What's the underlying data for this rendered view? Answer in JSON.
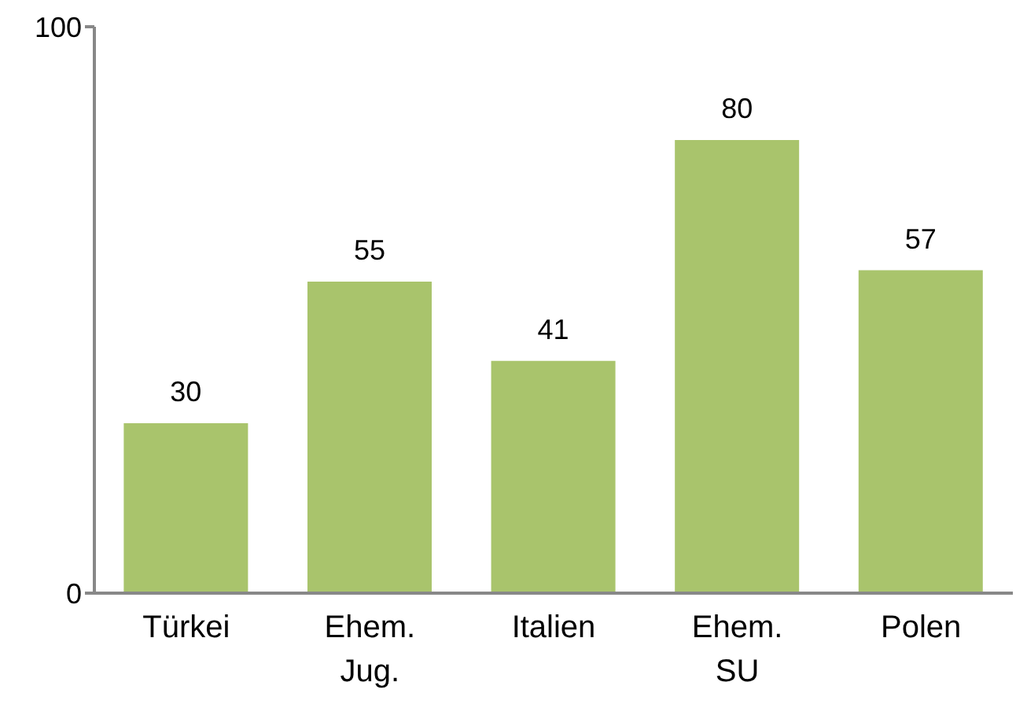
{
  "chart_data": {
    "type": "bar",
    "categories": [
      "Türkei",
      "Ehem. Jug.",
      "Italien",
      "Ehem. SU",
      "Polen"
    ],
    "values": [
      30,
      55,
      41,
      80,
      57
    ],
    "color": "#a9c46c",
    "ylim": [
      0,
      100
    ],
    "yticks": [
      0,
      100
    ],
    "grid": false,
    "data_labels": true
  }
}
